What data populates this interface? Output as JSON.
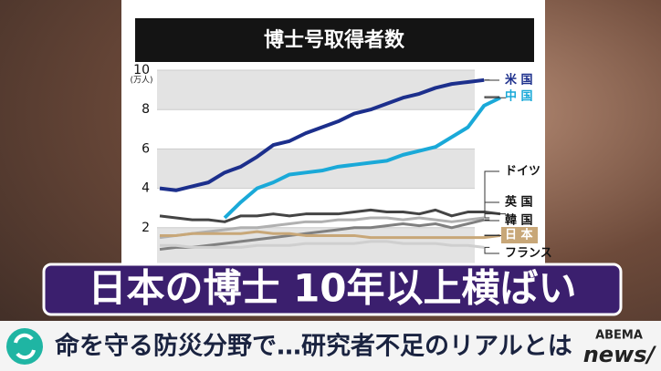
{
  "chart_data": {
    "type": "line",
    "title": "博士号取得者数",
    "y_unit": "(万人)",
    "categories": [
      null,
      null,
      null,
      null,
      null,
      null,
      null,
      null,
      null,
      null,
      null,
      null,
      null,
      null,
      null,
      null,
      null,
      null,
      null,
      null,
      null,
      null
    ],
    "ylim": [
      0,
      10
    ],
    "yticks": [
      2,
      4,
      6,
      8,
      10
    ],
    "grid": true,
    "series": [
      {
        "name": "米 国",
        "color": "#1c2f8c",
        "values": [
          4.0,
          3.9,
          4.1,
          4.3,
          4.8,
          5.1,
          5.6,
          6.2,
          6.4,
          6.8,
          7.1,
          7.4,
          7.8,
          8.0,
          8.3,
          8.6,
          8.8,
          9.1,
          9.3,
          9.4,
          9.5,
          null
        ]
      },
      {
        "name": "中 国",
        "color": "#1aa9d8",
        "values": [
          null,
          null,
          null,
          null,
          2.5,
          3.3,
          4.0,
          4.3,
          4.7,
          4.8,
          4.9,
          5.1,
          5.2,
          5.3,
          5.4,
          5.7,
          5.9,
          6.1,
          6.6,
          7.1,
          8.2,
          8.6
        ]
      },
      {
        "name": "ドイツ",
        "color": "#444444",
        "values": [
          2.6,
          2.5,
          2.4,
          2.4,
          2.3,
          2.6,
          2.6,
          2.7,
          2.6,
          2.7,
          2.7,
          2.7,
          2.8,
          2.9,
          2.8,
          2.8,
          2.7,
          2.9,
          2.6,
          2.8,
          2.8,
          2.7
        ]
      },
      {
        "name": "英 国",
        "color": "#b0b0b0",
        "values": [
          1.5,
          1.6,
          1.7,
          1.8,
          1.9,
          2.0,
          2.0,
          2.1,
          2.2,
          2.3,
          2.3,
          2.4,
          2.4,
          2.5,
          2.5,
          2.4,
          2.5,
          2.4,
          2.3,
          2.4,
          2.5,
          null
        ]
      },
      {
        "name": "韓 国",
        "color": "#808080",
        "values": [
          0.9,
          1.0,
          1.0,
          1.1,
          1.2,
          1.3,
          1.4,
          1.5,
          1.6,
          1.7,
          1.8,
          1.9,
          2.0,
          2.0,
          2.1,
          2.2,
          2.1,
          2.2,
          2.0,
          2.2,
          2.4,
          null
        ]
      },
      {
        "name": "日 本",
        "color": "#c8a778",
        "values": [
          1.6,
          1.6,
          1.7,
          1.7,
          1.7,
          1.7,
          1.8,
          1.7,
          1.7,
          1.6,
          1.6,
          1.6,
          1.6,
          1.5,
          1.5,
          1.5,
          1.5,
          1.5,
          1.5,
          1.5,
          1.5,
          1.6
        ]
      },
      {
        "name": "フランス",
        "color": "#cfcfcf",
        "values": [
          1.1,
          1.1,
          1.0,
          1.0,
          1.0,
          1.0,
          1.1,
          1.1,
          1.1,
          1.2,
          1.2,
          1.2,
          1.2,
          1.3,
          1.3,
          1.2,
          1.2,
          1.2,
          1.1,
          1.1,
          1.0,
          null
        ]
      }
    ]
  },
  "headline": "日本の博士 10年以上横ばい",
  "ticker": "命を守る防災分野で…研究者不足のリアルとは",
  "logo": {
    "brand": "ABEMA",
    "name": "news/"
  }
}
